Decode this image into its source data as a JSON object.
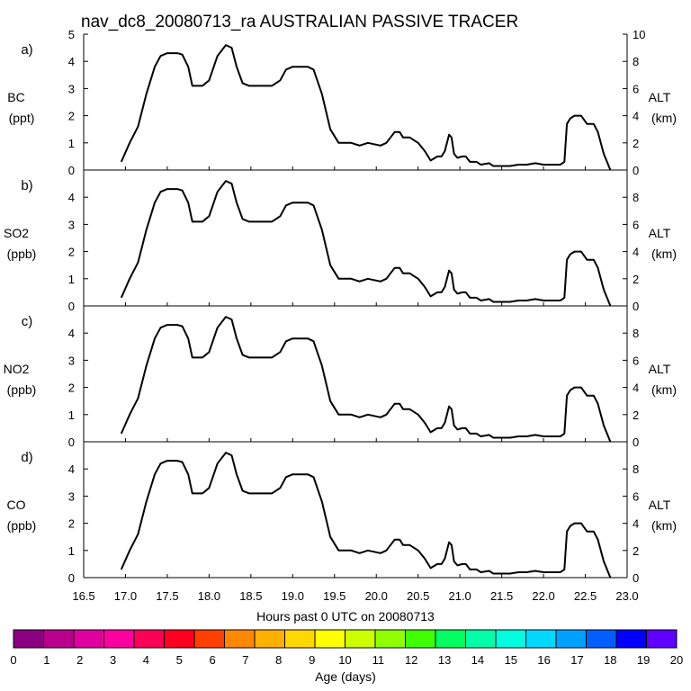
{
  "chart_data": {
    "type": "line",
    "title": "nav_dc8_20080713_ra AUSTRALIAN PASSIVE TRACER",
    "xlabel": "Hours past 0 UTC on 20080713",
    "x_ticks": [
      "16.5",
      "17.0",
      "17.5",
      "18.0",
      "18.5",
      "19.0",
      "19.5",
      "20.0",
      "20.5",
      "21.0",
      "21.5",
      "22.0",
      "22.5",
      "23.0"
    ],
    "xlim": [
      16.5,
      23.0
    ],
    "left_ylim": [
      0,
      5
    ],
    "right_ylim": [
      0,
      10
    ],
    "right_ylabel": "ALT",
    "right_yunits": "(km)",
    "panels": [
      {
        "letter": "a)",
        "species": "BC",
        "units": "(ppt)",
        "left_ticks": [
          "0",
          "1",
          "2",
          "3",
          "4",
          "5"
        ],
        "right_ticks": [
          "0",
          "2",
          "4",
          "6",
          "8",
          "10"
        ],
        "tracer_values": []
      },
      {
        "letter": "b)",
        "species": "SO2",
        "units": "(ppb)",
        "left_ticks": [
          "0",
          "1",
          "2",
          "3",
          "4"
        ],
        "right_ticks": [
          "0",
          "2",
          "4",
          "6",
          "8"
        ],
        "tracer_values": []
      },
      {
        "letter": "c)",
        "species": "NO2",
        "units": "(ppb)",
        "left_ticks": [
          "0",
          "1",
          "2",
          "3",
          "4"
        ],
        "right_ticks": [
          "0",
          "2",
          "4",
          "6",
          "8"
        ],
        "tracer_values": []
      },
      {
        "letter": "d)",
        "species": "CO",
        "units": "(ppb)",
        "left_ticks": [
          "0",
          "1",
          "2",
          "3",
          "4"
        ],
        "right_ticks": [
          "0",
          "2",
          "4",
          "6",
          "8"
        ],
        "tracer_values": []
      }
    ],
    "altitude_series": {
      "name": "ALT (km)",
      "x": [
        16.95,
        17.05,
        17.15,
        17.25,
        17.35,
        17.42,
        17.5,
        17.62,
        17.68,
        17.75,
        17.8,
        17.92,
        18.0,
        18.1,
        18.2,
        18.27,
        18.33,
        18.4,
        18.48,
        18.6,
        18.75,
        18.85,
        18.92,
        19.0,
        19.1,
        19.18,
        19.25,
        19.35,
        19.45,
        19.55,
        19.7,
        19.8,
        19.9,
        20.05,
        20.12,
        20.22,
        20.28,
        20.32,
        20.4,
        20.5,
        20.58,
        20.65,
        20.73,
        20.78,
        20.82,
        20.87,
        20.9,
        20.93,
        20.97,
        21.03,
        21.07,
        21.12,
        21.2,
        21.25,
        21.35,
        21.4,
        21.5,
        21.6,
        21.7,
        21.8,
        21.9,
        22.0,
        22.05,
        22.1,
        22.2,
        22.25,
        22.28,
        22.32,
        22.37,
        22.45,
        22.52,
        22.6,
        22.65,
        22.72,
        22.8
      ],
      "y": [
        0.6,
        2.0,
        3.2,
        5.6,
        7.6,
        8.4,
        8.6,
        8.6,
        8.5,
        7.6,
        6.2,
        6.2,
        6.6,
        8.4,
        9.2,
        9.0,
        7.6,
        6.4,
        6.2,
        6.2,
        6.2,
        6.6,
        7.4,
        7.6,
        7.6,
        7.6,
        7.4,
        5.6,
        3.0,
        2.0,
        2.0,
        1.8,
        2.0,
        1.8,
        2.0,
        2.8,
        2.8,
        2.4,
        2.4,
        2.0,
        1.4,
        0.7,
        1.0,
        1.0,
        1.4,
        2.6,
        2.4,
        1.2,
        0.9,
        1.0,
        1.0,
        0.6,
        0.6,
        0.4,
        0.5,
        0.3,
        0.3,
        0.3,
        0.4,
        0.4,
        0.5,
        0.4,
        0.4,
        0.4,
        0.4,
        0.6,
        3.4,
        3.8,
        4.0,
        4.0,
        3.4,
        3.4,
        2.8,
        1.2,
        0.0
      ]
    },
    "color_bar": {
      "label": "Age (days)",
      "ticks": [
        "0",
        "1",
        "2",
        "3",
        "4",
        "5",
        "6",
        "7",
        "8",
        "9",
        "10",
        "11",
        "12",
        "13",
        "14",
        "15",
        "16",
        "17",
        "18",
        "19",
        "20"
      ],
      "colors": [
        "#8a0080",
        "#b8008c",
        "#e000a0",
        "#ff00a0",
        "#ff0058",
        "#ff0020",
        "#ff4000",
        "#ff8800",
        "#ffb000",
        "#ffd800",
        "#ffff00",
        "#ccff00",
        "#90ff00",
        "#40ff00",
        "#00ff60",
        "#00ffa8",
        "#00ffe0",
        "#00d8ff",
        "#00a0ff",
        "#0060ff",
        "#0000ff",
        "#6000ff"
      ]
    }
  }
}
